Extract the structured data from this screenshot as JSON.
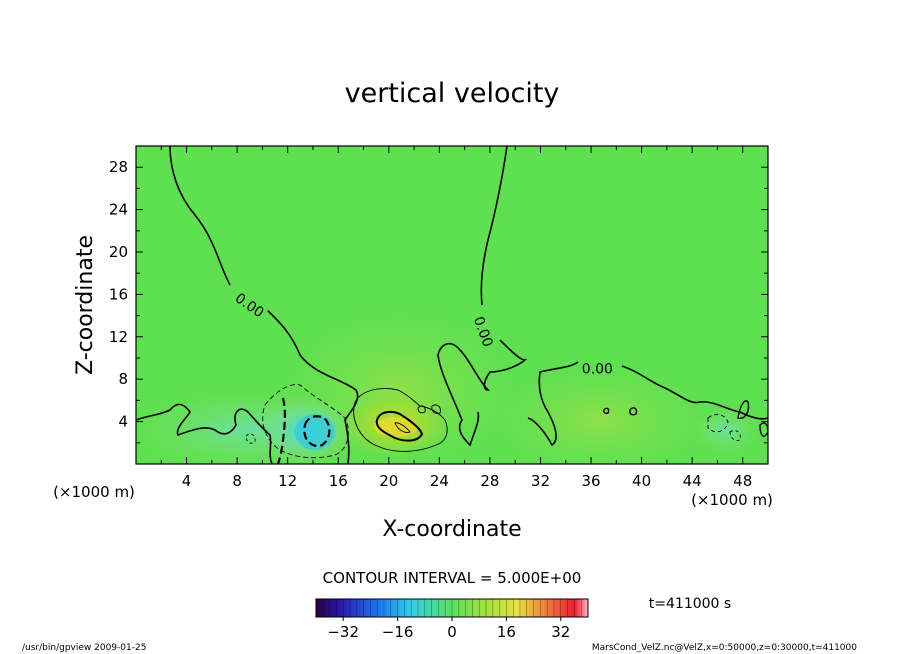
{
  "chart_data": {
    "type": "heatmap",
    "title": "vertical velocity",
    "xlabel": "X-coordinate",
    "ylabel": "Z-coordinate",
    "x_unit": "(×1000 m)",
    "y_unit": "(×1000 m)",
    "x_ticks": [
      4,
      8,
      12,
      16,
      20,
      24,
      28,
      32,
      36,
      40,
      44,
      48
    ],
    "y_ticks": [
      4,
      8,
      12,
      16,
      20,
      24,
      28
    ],
    "xlim": [
      0,
      50
    ],
    "ylim": [
      0,
      30
    ],
    "contour_interval": "CONTOUR INTERVAL = 5.000E+00",
    "time_label": "t=411000 s",
    "contour_labels": [
      {
        "text": "0.00",
        "x": 9.0,
        "y": 15.0
      },
      {
        "text": "0.00",
        "x": 27.5,
        "y": 12.5
      },
      {
        "text": "0.00",
        "x": 36.5,
        "y": 9.0
      }
    ],
    "colorbar": {
      "ticks": [
        -32,
        -16,
        0,
        16,
        32
      ],
      "range": [
        -40,
        40
      ]
    },
    "features": [
      {
        "name": "updraft",
        "x": 20.5,
        "y": 3.5
      },
      {
        "name": "downdraft",
        "x": 13.8,
        "y": 3.0
      }
    ]
  },
  "footer": {
    "left": "/usr/bin/gpview   2009-01-25",
    "right": "MarsCond_VelZ.nc@VelZ,x=0:50000,z=0:30000,t=411000"
  }
}
